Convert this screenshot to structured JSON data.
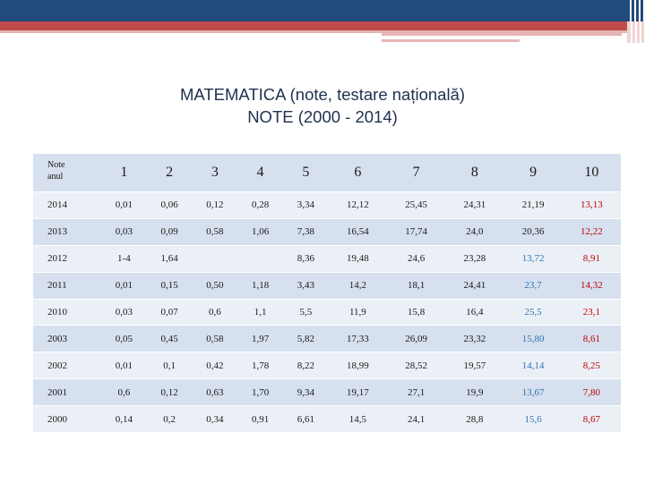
{
  "title": {
    "line1": "MATEMATICA (note, testare națională)",
    "line2": "NOTE (2000 - 2014)"
  },
  "table": {
    "corner": [
      "Note",
      "anul"
    ],
    "columns": [
      "1",
      "2",
      "3",
      "4",
      "5",
      "6",
      "7",
      "8",
      "9",
      "10"
    ],
    "rows": [
      {
        "year": "2014",
        "values": [
          "0,01",
          "0,06",
          "0,12",
          "0,28",
          "3,34",
          "12,12",
          "25,45",
          "24,31",
          "21,19",
          "13,13"
        ]
      },
      {
        "year": "2013",
        "values": [
          "0,03",
          "0,09",
          "0,58",
          "1,06",
          "7,38",
          "16,54",
          "17,74",
          "24,0",
          "20,36",
          "12,22"
        ]
      },
      {
        "year": "2012",
        "values": [
          "1-4",
          "1,64",
          "",
          "",
          "8,36",
          "19,48",
          "24,6",
          "23,28",
          "13,72",
          "8,91"
        ]
      },
      {
        "year": "2011",
        "values": [
          "0,01",
          "0,15",
          "0,50",
          "1,18",
          "3,43",
          "14,2",
          "18,1",
          "24,41",
          "23,7",
          "14,32"
        ]
      },
      {
        "year": "2010",
        "values": [
          "0,03",
          "0,07",
          "0,6",
          "1,1",
          "5,5",
          "11,9",
          "15,8",
          "16,4",
          "25,5",
          "23,1"
        ]
      },
      {
        "year": "2003",
        "values": [
          "0,05",
          "0,45",
          "0,58",
          "1,97",
          "5,82",
          "17,33",
          "26,09",
          "23,32",
          "15,80",
          "8,61"
        ]
      },
      {
        "year": "2002",
        "values": [
          "0,01",
          "0,1",
          "0,42",
          "1,78",
          "8,22",
          "18,99",
          "28,52",
          "19,57",
          "14,14",
          "8,25"
        ]
      },
      {
        "year": "2001",
        "values": [
          "0,6",
          "0,12",
          "0,63",
          "1,70",
          "9,34",
          "19,17",
          "27,1",
          "19,9",
          "13,67",
          "7,80"
        ]
      },
      {
        "year": "2000",
        "values": [
          "0,14",
          "0,2",
          "0,34",
          "0,91",
          "6,61",
          "14,5",
          "24,1",
          "28,8",
          "15,6",
          "8,67"
        ]
      }
    ],
    "colors": {
      "blue": "#2e74b5",
      "red": "#c00000",
      "dark": "#1a1a1a"
    }
  }
}
